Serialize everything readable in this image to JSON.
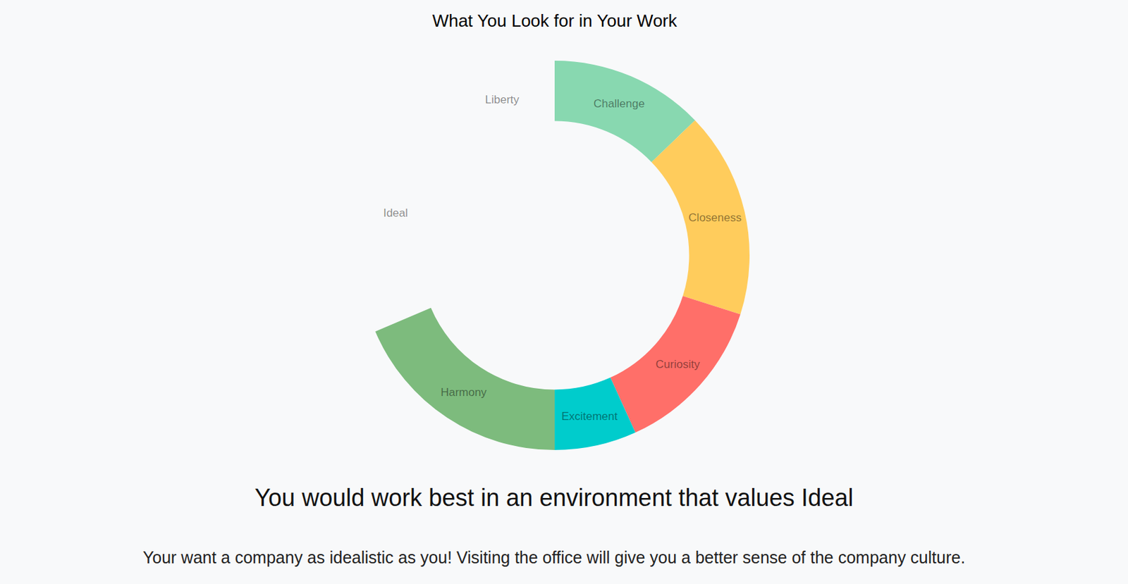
{
  "chart_data": {
    "type": "pie",
    "title": "What You Look for in Your Work",
    "categories": [
      "Challenge",
      "Closeness",
      "Curiosity",
      "Excitement",
      "Harmony",
      "Ideal",
      "Liberty"
    ],
    "values": [
      12.8,
      17.1,
      13.3,
      6.8,
      18.6,
      21.1,
      10.3
    ],
    "colors": [
      "#88d8b0",
      "#ffcc5c",
      "#ff6f69",
      "#00cccc",
      "#7dbb7d",
      "rgba(0,0,0,0)",
      "rgba(0,0,0,0)"
    ]
  },
  "heading": "You would work best in an environment that values Ideal",
  "text": "Your want a company as idealistic as you! Visiting the office will give you a better sense of the company culture."
}
